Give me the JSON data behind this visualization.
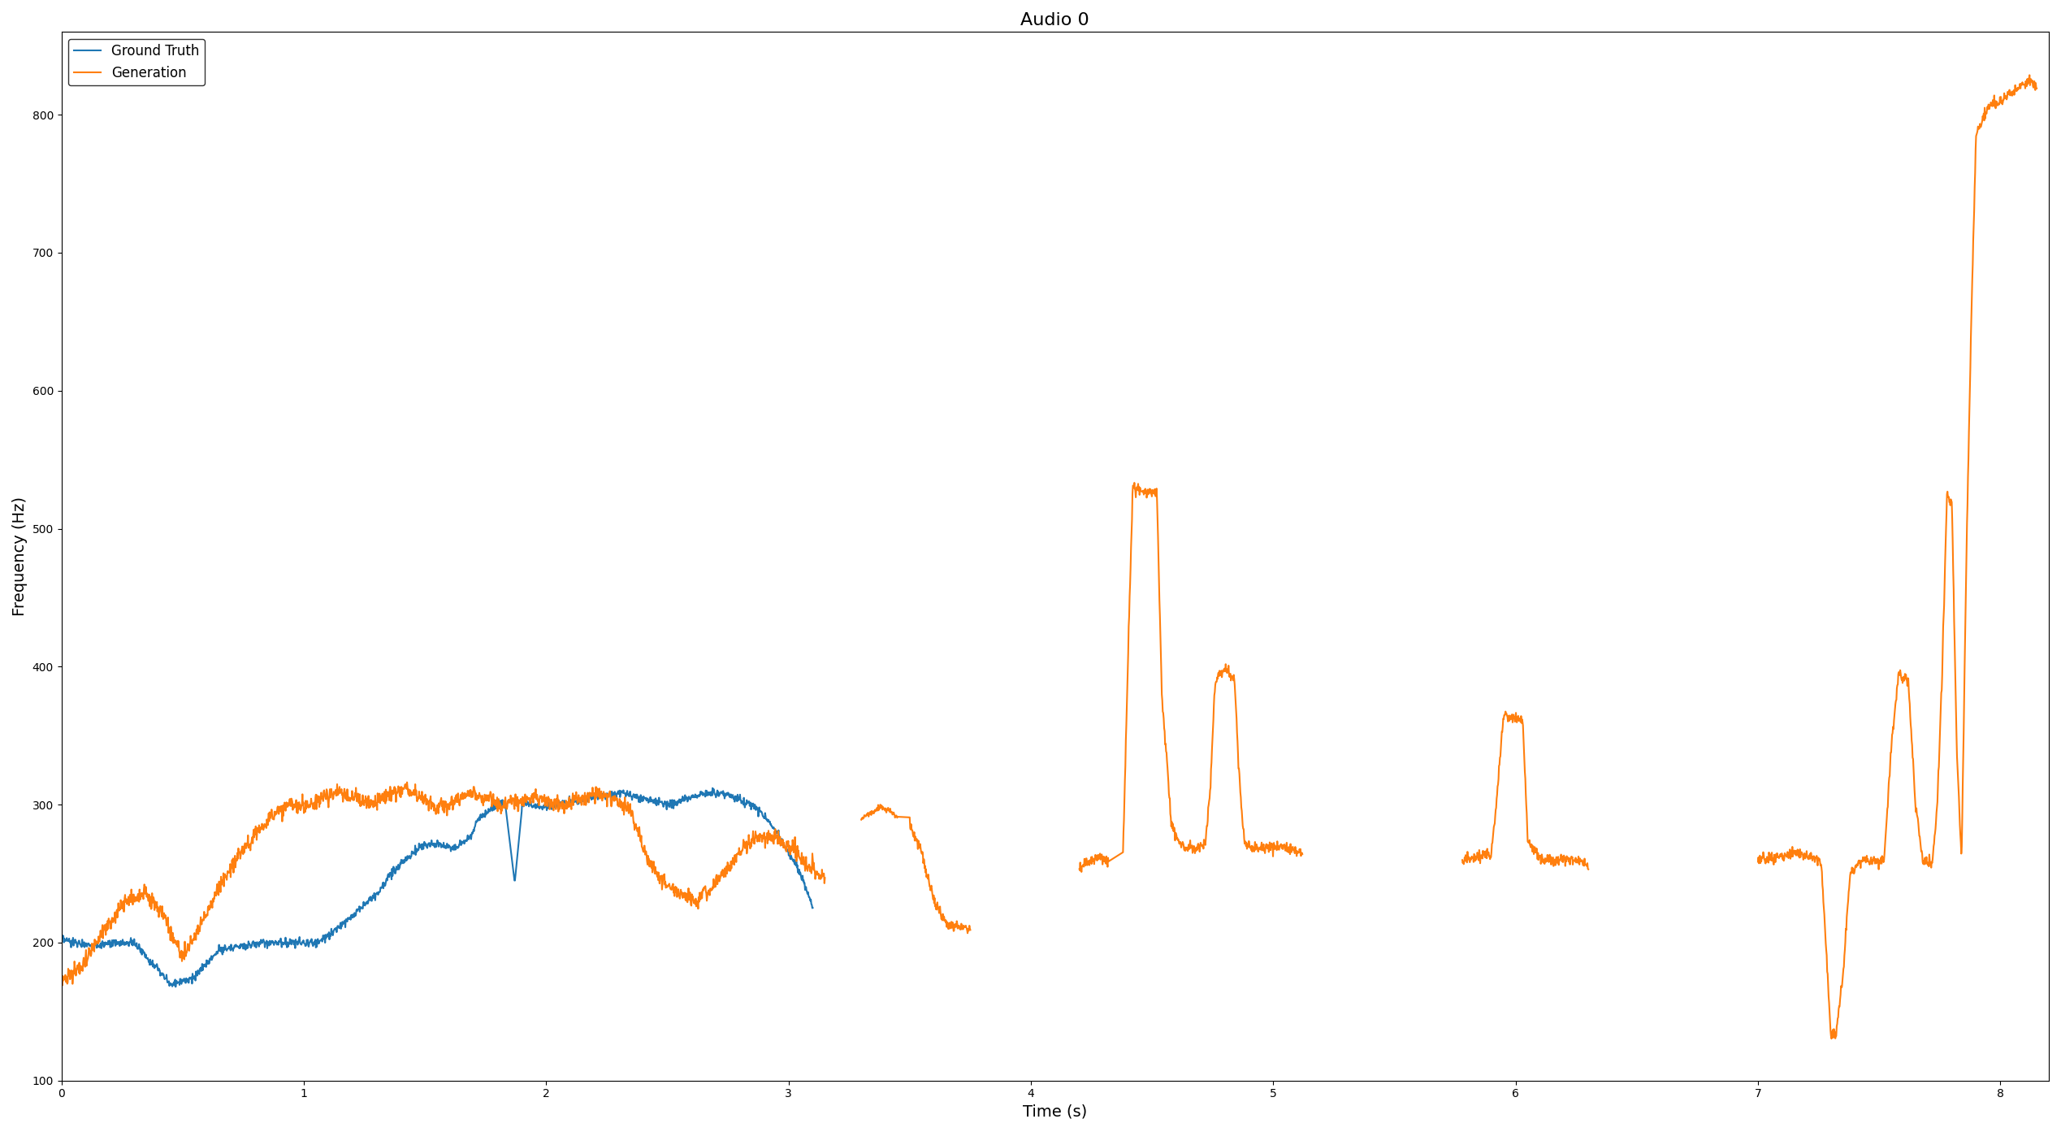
{
  "title": "Audio 0",
  "xlabel": "Time (s)",
  "ylabel": "Frequency (Hz)",
  "xlim": [
    0,
    8.2
  ],
  "ylim": [
    100,
    860
  ],
  "yticks": [
    100,
    200,
    300,
    400,
    500,
    600,
    700,
    800
  ],
  "xticks": [
    0,
    1,
    2,
    3,
    4,
    5,
    6,
    7,
    8
  ],
  "gt_color": "#1f77b4",
  "gen_color": "#ff7f0e",
  "linewidth": 1.5,
  "legend_labels": [
    "Ground Truth",
    "Generation"
  ],
  "figsize": [
    25.37,
    13.93
  ],
  "dpi": 100
}
